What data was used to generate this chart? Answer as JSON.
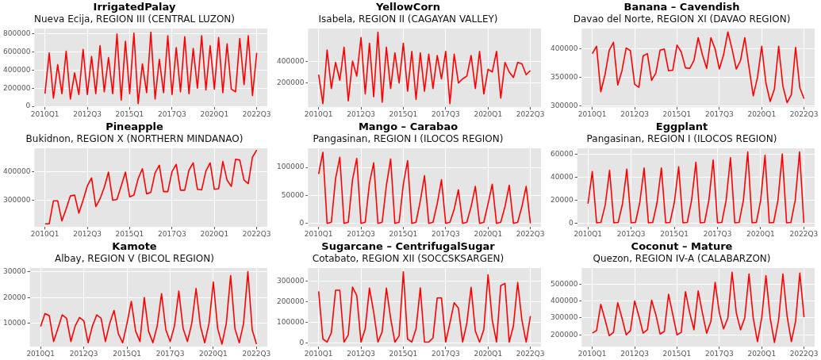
{
  "chart_data": [
    {
      "type": "line",
      "title": "IrrigatedPalay",
      "subtitle": "Nueva Ecija, REGION III (CENTRAL LUZON)",
      "categories": [
        "2010Q1",
        null,
        null,
        null,
        null,
        null,
        null,
        null,
        null,
        null,
        "2012Q3",
        null,
        null,
        null,
        null,
        null,
        null,
        null,
        null,
        null,
        "2015Q1",
        null,
        null,
        null,
        null,
        null,
        null,
        null,
        null,
        null,
        "2017Q3",
        null,
        null,
        null,
        null,
        null,
        null,
        null,
        null,
        null,
        "2020Q1",
        null,
        null,
        null,
        null,
        null,
        null,
        null,
        null,
        null,
        "2022Q3"
      ],
      "series": [
        {
          "color": "#ff0000",
          "values": [
            140000,
            590000,
            90000,
            460000,
            140000,
            610000,
            80000,
            370000,
            130000,
            630000,
            130000,
            550000,
            140000,
            670000,
            160000,
            540000,
            140000,
            800000,
            70000,
            720000,
            140000,
            810000,
            30000,
            470000,
            150000,
            820000,
            80000,
            520000,
            150000,
            780000,
            130000,
            650000,
            160000,
            770000,
            140000,
            640000,
            200000,
            780000,
            180000,
            670000,
            190000,
            760000,
            150000,
            690000,
            190000,
            160000,
            750000,
            240000,
            780000,
            120000,
            590000
          ]
        }
      ],
      "ylim": [
        -10000,
        860000
      ],
      "yticks": [
        0,
        200000,
        400000,
        600000,
        800000
      ],
      "grid": true
    },
    {
      "type": "line",
      "title": "YellowCorn",
      "subtitle": "Isabela, REGION II (CAGAYAN VALLEY)",
      "categories": [
        "2010Q1",
        null,
        null,
        null,
        null,
        null,
        null,
        null,
        null,
        null,
        "2012Q3",
        null,
        null,
        null,
        null,
        null,
        null,
        null,
        null,
        null,
        "2015Q1",
        null,
        null,
        null,
        null,
        null,
        null,
        null,
        null,
        null,
        "2017Q3",
        null,
        null,
        null,
        null,
        null,
        null,
        null,
        null,
        null,
        "2020Q1",
        null,
        null,
        null,
        null,
        null,
        null,
        null,
        null,
        null,
        "2022Q3"
      ],
      "series": [
        {
          "color": "#ff0000",
          "values": [
            275000,
            0,
            510000,
            144000,
            392000,
            222000,
            536000,
            26000,
            405000,
            262000,
            628000,
            92000,
            575000,
            65000,
            680000,
            13000,
            536000,
            144000,
            484000,
            196000,
            575000,
            118000,
            497000,
            39000,
            484000,
            118000,
            471000,
            144000,
            458000,
            235000,
            497000,
            0,
            471000,
            196000,
            235000,
            262000,
            458000,
            144000,
            497000,
            92000,
            327000,
            301000,
            497000,
            52000,
            392000,
            301000,
            249000,
            392000,
            379000,
            275000,
            314000
          ]
        }
      ],
      "ylim": [
        -34000,
        714000
      ],
      "yticks": [
        200000,
        400000
      ],
      "grid": true
    },
    {
      "type": "line",
      "title": "Banana – Cavendish",
      "subtitle": "Davao del Norte, REGION XI (DAVAO REGION)",
      "categories": [
        "2010Q1",
        null,
        null,
        null,
        null,
        null,
        null,
        null,
        null,
        null,
        "2012Q3",
        null,
        null,
        null,
        null,
        null,
        null,
        null,
        null,
        null,
        "2015Q1",
        null,
        null,
        null,
        null,
        null,
        null,
        null,
        null,
        null,
        "2017Q3",
        null,
        null,
        null,
        null,
        null,
        null,
        null,
        null,
        null,
        "2020Q1",
        null,
        null,
        null,
        null,
        null,
        null,
        null,
        null,
        null,
        "2022Q3"
      ],
      "series": [
        {
          "color": "#ff0000",
          "values": [
            392000,
            405000,
            325000,
            355000,
            398000,
            412000,
            337000,
            362000,
            402000,
            397000,
            338000,
            333000,
            388000,
            392000,
            345000,
            358000,
            398000,
            400000,
            362000,
            363000,
            407000,
            395000,
            367000,
            366000,
            380000,
            420000,
            390000,
            366000,
            420000,
            400000,
            365000,
            390000,
            430000,
            400000,
            365000,
            380000,
            420000,
            368000,
            318000,
            350000,
            405000,
            340000,
            308000,
            330000,
            405000,
            335000,
            306000,
            320000,
            403000,
            332000,
            313000
          ]
        }
      ],
      "ylim": [
        298000,
        436000
      ],
      "yticks": [
        300000,
        350000,
        400000
      ],
      "grid": true
    },
    {
      "type": "line",
      "title": "Pineapple",
      "subtitle": "Bukidnon, REGION X (NORTHERN MINDANAO)",
      "categories": [
        "2010Q1",
        null,
        null,
        null,
        null,
        null,
        null,
        null,
        null,
        null,
        "2012Q3",
        null,
        null,
        null,
        null,
        null,
        null,
        null,
        null,
        null,
        "2015Q1",
        null,
        null,
        null,
        null,
        null,
        null,
        null,
        null,
        null,
        "2017Q3",
        null,
        null,
        null,
        null,
        null,
        null,
        null,
        null,
        null,
        "2020Q1",
        null,
        null,
        null,
        null,
        null,
        null,
        null,
        null,
        null,
        "2022Q3"
      ],
      "series": [
        {
          "color": "#ff0000",
          "values": [
            218000,
            218000,
            298000,
            298000,
            228000,
            270000,
            315000,
            318000,
            255000,
            300000,
            350000,
            378000,
            278000,
            305000,
            345000,
            398000,
            300000,
            303000,
            350000,
            398000,
            312000,
            318000,
            375000,
            410000,
            322000,
            328000,
            395000,
            422000,
            330000,
            330000,
            400000,
            425000,
            335000,
            335000,
            405000,
            430000,
            338000,
            336000,
            402000,
            430000,
            338000,
            340000,
            435000,
            370000,
            348000,
            443000,
            440000,
            370000,
            358000,
            450000,
            475000
          ]
        }
      ],
      "ylim": [
        207000,
        481000
      ],
      "yticks": [
        300000,
        400000
      ],
      "grid": true
    },
    {
      "type": "line",
      "title": "Mango – Carabao",
      "subtitle": "Pangasinan, REGION I (ILOCOS REGION)",
      "categories": [
        "2010Q1",
        null,
        null,
        null,
        null,
        null,
        null,
        null,
        null,
        null,
        "2012Q3",
        null,
        null,
        null,
        null,
        null,
        null,
        null,
        null,
        null,
        "2015Q1",
        null,
        null,
        null,
        null,
        null,
        null,
        null,
        null,
        null,
        "2017Q3",
        null,
        null,
        null,
        null,
        null,
        null,
        null,
        null,
        null,
        "2020Q1",
        null,
        null,
        null,
        null,
        null,
        null,
        null,
        null,
        null,
        "2022Q3"
      ],
      "series": [
        {
          "color": "#ff0000",
          "values": [
            88000,
            127000,
            0,
            2000,
            80000,
            118000,
            0,
            2000,
            78000,
            116000,
            0,
            2000,
            72000,
            108000,
            0,
            2000,
            68000,
            115000,
            0,
            2000,
            70000,
            112000,
            0,
            2000,
            40000,
            85000,
            0,
            2000,
            35000,
            78000,
            0,
            2000,
            25000,
            60000,
            0,
            2000,
            30000,
            66000,
            0,
            2000,
            35000,
            70000,
            0,
            2000,
            30000,
            68000,
            0,
            2000,
            30000,
            66000,
            0
          ]
        }
      ],
      "ylim": [
        -6400,
        134000
      ],
      "yticks": [
        0,
        50000,
        100000
      ],
      "grid": true
    },
    {
      "type": "line",
      "title": "Eggplant",
      "subtitle": "Pangasinan, REGION I (ILOCOS REGION)",
      "categories": [
        "2010Q1",
        null,
        null,
        null,
        null,
        null,
        null,
        null,
        null,
        null,
        "2012Q3",
        null,
        null,
        null,
        null,
        null,
        null,
        null,
        null,
        null,
        "2015Q1",
        null,
        null,
        null,
        null,
        null,
        null,
        null,
        null,
        null,
        "2017Q3",
        null,
        null,
        null,
        null,
        null,
        null,
        null,
        null,
        null,
        "2020Q1",
        null,
        null,
        null,
        null,
        null,
        null,
        null,
        null,
        null,
        "2022Q3"
      ],
      "series": [
        {
          "color": "#ff0000",
          "values": [
            17000,
            45000,
            500,
            800,
            16000,
            46000,
            500,
            800,
            17000,
            47000,
            500,
            800,
            18000,
            48000,
            500,
            800,
            18000,
            48000,
            500,
            800,
            18000,
            49000,
            500,
            800,
            20000,
            53000,
            500,
            800,
            20000,
            55000,
            500,
            800,
            20000,
            57000,
            500,
            800,
            20000,
            62000,
            500,
            800,
            20000,
            59000,
            500,
            800,
            20000,
            60000,
            500,
            800,
            20000,
            62000,
            500
          ]
        }
      ],
      "ylim": [
        -3100,
        65100
      ],
      "yticks": [
        0,
        20000,
        40000,
        60000
      ],
      "grid": true
    },
    {
      "type": "line",
      "title": "Kamote",
      "subtitle": "Albay, REGION V (BICOL REGION)",
      "categories": [
        "2010Q1",
        null,
        null,
        null,
        null,
        null,
        null,
        null,
        null,
        null,
        "2012Q3",
        null,
        null,
        null,
        null,
        null,
        null,
        null,
        null,
        null,
        "2015Q1",
        null,
        null,
        null,
        null,
        null,
        null,
        null,
        null,
        null,
        "2017Q3",
        null,
        null,
        null,
        null,
        null,
        null,
        null,
        null,
        null,
        "2020Q1",
        null,
        null,
        null,
        null,
        null,
        null,
        null,
        null,
        null,
        "2022Q3"
      ],
      "series": [
        {
          "color": "#ff0000",
          "values": [
            8800,
            13800,
            13000,
            3000,
            8000,
            13300,
            12000,
            3000,
            9000,
            12300,
            11000,
            2500,
            9000,
            13300,
            12000,
            3000,
            10000,
            15000,
            6000,
            2500,
            10000,
            18500,
            7000,
            3000,
            20000,
            7000,
            2500,
            9000,
            21500,
            7500,
            3000,
            9000,
            22500,
            8000,
            3000,
            10000,
            23500,
            9000,
            2500,
            10000,
            26000,
            8000,
            2000,
            10000,
            28500,
            8000,
            2500,
            10000,
            30000,
            7500,
            2000
          ]
        }
      ],
      "ylim": [
        1000,
        31400
      ],
      "yticks": [
        10000,
        20000,
        30000
      ],
      "grid": true
    },
    {
      "type": "line",
      "title": "Sugarcane – CentrifugalSugar",
      "subtitle": "Cotabato, REGION XII (SOCCSKSARGEN)",
      "categories": [
        "2010Q1",
        null,
        null,
        null,
        null,
        null,
        null,
        null,
        null,
        null,
        "2012Q3",
        null,
        null,
        null,
        null,
        null,
        null,
        null,
        null,
        null,
        "2015Q1",
        null,
        null,
        null,
        null,
        null,
        null,
        null,
        null,
        null,
        "2017Q3",
        null,
        null,
        null,
        null,
        null,
        null,
        null,
        null,
        null,
        "2020Q1",
        null,
        null,
        null,
        null,
        null,
        null,
        null,
        null,
        null,
        "2022Q3"
      ],
      "series": [
        {
          "color": "#ff0000",
          "values": [
            250000,
            20000,
            5000,
            50000,
            255000,
            255000,
            5000,
            40000,
            270000,
            230000,
            5000,
            70000,
            265000,
            150000,
            5000,
            55000,
            265000,
            120000,
            5000,
            35000,
            344000,
            20000,
            5000,
            70000,
            266000,
            5000,
            5000,
            25000,
            218000,
            218000,
            5000,
            97000,
            195000,
            169000,
            5000,
            97000,
            269000,
            58000,
            5000,
            65000,
            329000,
            110000,
            5000,
            277000,
            288000,
            5000,
            84000,
            292000,
            110000,
            5000,
            130000
          ]
        }
      ],
      "ylim": [
        -17000,
        362000
      ],
      "yticks": [
        0,
        100000,
        200000,
        300000
      ],
      "grid": true
    },
    {
      "type": "line",
      "title": "Coconut – Mature",
      "subtitle": "Quezon, REGION IV-A (CALABARZON)",
      "categories": [
        "2010Q1",
        null,
        null,
        null,
        null,
        null,
        null,
        null,
        null,
        null,
        "2012Q3",
        null,
        null,
        null,
        null,
        null,
        null,
        null,
        null,
        null,
        "2015Q1",
        null,
        null,
        null,
        null,
        null,
        null,
        null,
        null,
        null,
        "2017Q3",
        null,
        null,
        null,
        null,
        null,
        null,
        null,
        null,
        null,
        "2020Q1",
        null,
        null,
        null,
        null,
        null,
        null,
        null,
        null,
        null,
        "2022Q3"
      ],
      "series": [
        {
          "color": "#ff0000",
          "values": [
            210000,
            225000,
            380000,
            290000,
            195000,
            215000,
            390000,
            300000,
            200000,
            225000,
            400000,
            310000,
            210000,
            230000,
            405000,
            320000,
            205000,
            220000,
            440000,
            320000,
            200000,
            215000,
            455000,
            330000,
            230000,
            460000,
            330000,
            210000,
            280000,
            510000,
            330000,
            235000,
            300000,
            570000,
            330000,
            230000,
            300000,
            560000,
            300000,
            160000,
            300000,
            550000,
            300000,
            155000,
            290000,
            560000,
            310000,
            160000,
            280000,
            565000,
            305000
          ]
        }
      ],
      "ylim": [
        130000,
        595000
      ],
      "yticks": [
        200000,
        300000,
        400000,
        500000
      ],
      "grid": true
    }
  ]
}
